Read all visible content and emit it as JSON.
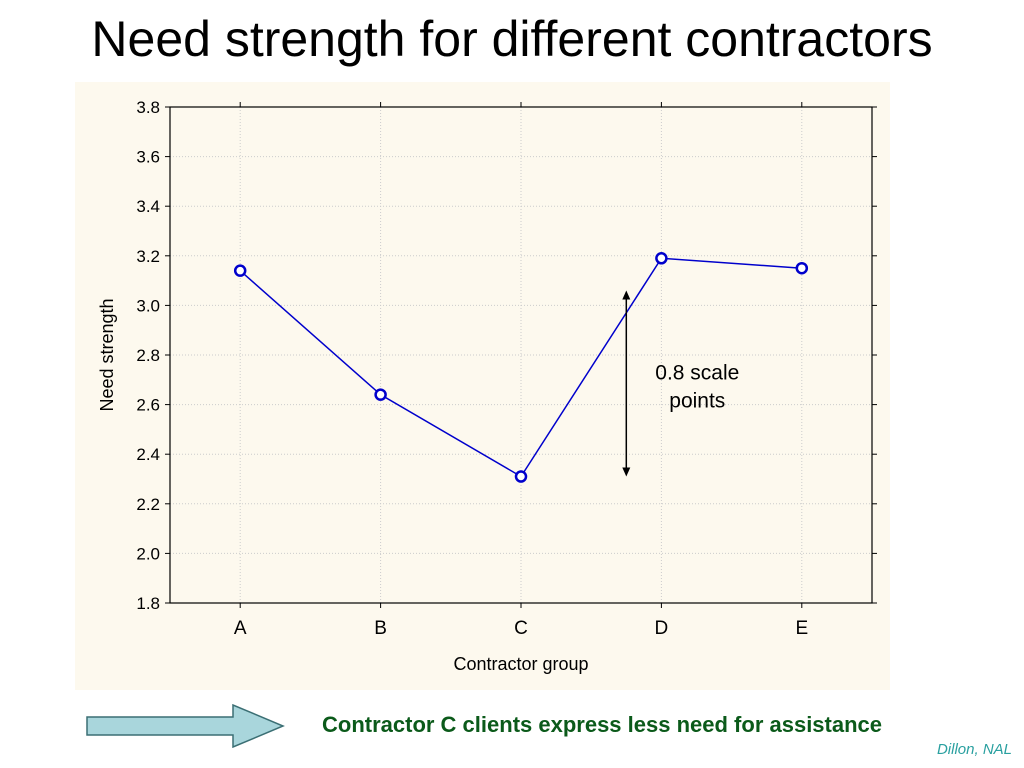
{
  "slide": {
    "title": "Need strength for different contractors",
    "conclusion": "Contractor C clients express less need for assistance",
    "credit": "Dillon, NAL"
  },
  "chart_data": {
    "type": "line",
    "categories": [
      "A",
      "B",
      "C",
      "D",
      "E"
    ],
    "values": [
      3.14,
      2.64,
      2.31,
      3.19,
      3.15
    ],
    "xlabel": "Contractor group",
    "ylabel": "Need strength",
    "ylim": [
      1.8,
      3.8
    ],
    "yticks": [
      "1.8",
      "2.0",
      "2.2",
      "2.4",
      "2.6",
      "2.8",
      "3.0",
      "3.2",
      "3.4",
      "3.6",
      "3.8"
    ],
    "grid": true,
    "annotation": {
      "line1": "0.8 scale",
      "line2": "points",
      "from": 2.31,
      "to": 3.06
    },
    "colors": {
      "series": "#0000cc",
      "panel_background": "#fdf9ee",
      "grid": "#cccccc"
    }
  },
  "colors": {
    "conclusion_text": "#0b5a1a",
    "credit_text": "#2aa0a0",
    "arrow_fill": "#a9d6dc",
    "arrow_stroke": "#3b6f74"
  }
}
